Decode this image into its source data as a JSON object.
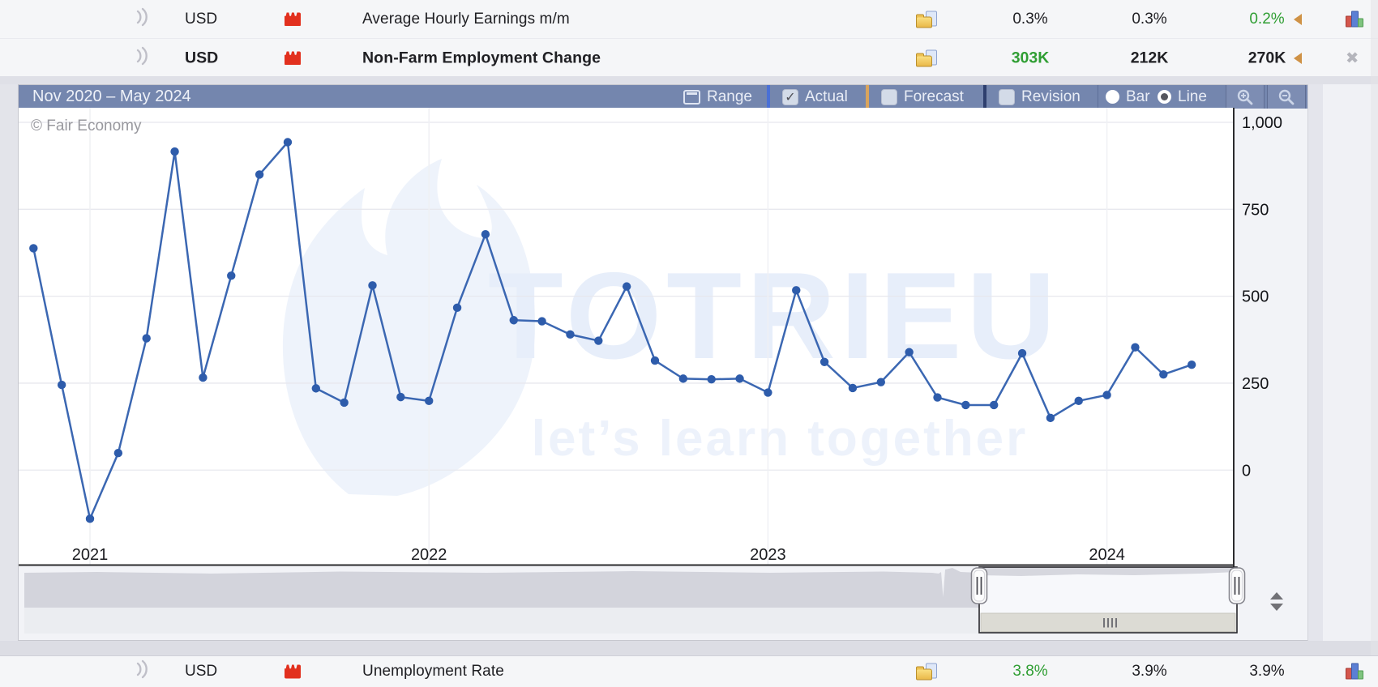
{
  "events": {
    "rows": [
      {
        "currency": "USD",
        "title": "Average Hourly Earnings m/m",
        "actual": "0.3%",
        "forecast": "0.3%",
        "previous": "0.2%"
      },
      {
        "currency": "USD",
        "title": "Non-Farm Employment Change",
        "actual": "303K",
        "forecast": "212K",
        "previous": "270K"
      },
      {
        "currency": "USD",
        "title": "Unemployment Rate",
        "actual": "3.8%",
        "forecast": "3.9%",
        "previous": "3.9%"
      }
    ]
  },
  "icons": {
    "close_glyph": "✖"
  },
  "colors": {
    "accent_green": "#2f9e33",
    "revision_arrow": "#cf9246",
    "impact_red": "#e2301e",
    "series_blue": "#3b67b2",
    "header_blue": "#7486ae"
  },
  "chart": {
    "range_title": "Nov 2020 – May 2024",
    "controls": {
      "range_label": "Range",
      "actual_label": "Actual",
      "forecast_label": "Forecast",
      "revision_label": "Revision",
      "bar_label": "Bar",
      "line_label": "Line",
      "actual_checked": true,
      "forecast_checked": false,
      "revision_checked": false,
      "mode_selected": "Line"
    },
    "watermark_copyright": "© Fair Economy",
    "watermark_title": "TOTRIEU",
    "watermark_subtitle": "let’s learn together"
  },
  "chart_data": {
    "type": "line",
    "title": "Non-Farm Employment Change",
    "range_label": "Nov 2020 – May 2024",
    "unit": "K",
    "x": [
      "Nov 2020",
      "Dec 2020",
      "Jan 2021",
      "Feb 2021",
      "Mar 2021",
      "Apr 2021",
      "May 2021",
      "Jun 2021",
      "Jul 2021",
      "Aug 2021",
      "Sep 2021",
      "Oct 2021",
      "Nov 2021",
      "Dec 2021",
      "Jan 2022",
      "Feb 2022",
      "Mar 2022",
      "Apr 2022",
      "May 2022",
      "Jun 2022",
      "Jul 2022",
      "Aug 2022",
      "Sep 2022",
      "Oct 2022",
      "Nov 2022",
      "Dec 2022",
      "Jan 2023",
      "Feb 2023",
      "Mar 2023",
      "Apr 2023",
      "May 2023",
      "Jun 2023",
      "Jul 2023",
      "Aug 2023",
      "Sep 2023",
      "Oct 2023",
      "Nov 2023",
      "Dec 2023",
      "Jan 2024",
      "Feb 2024",
      "Mar 2024",
      "Apr 2024"
    ],
    "series": [
      {
        "name": "Actual",
        "color": "#3b67b2",
        "values": [
          638,
          245,
          -140,
          49,
          379,
          916,
          266,
          559,
          850,
          943,
          235,
          194,
          531,
          210,
          199,
          467,
          678,
          431,
          428,
          390,
          372,
          528,
          315,
          263,
          261,
          263,
          223,
          517,
          311,
          236,
          253,
          339,
          209,
          187,
          187,
          336,
          150,
          199,
          216,
          353,
          275,
          303
        ]
      }
    ],
    "y_ticks": [
      1000,
      750,
      500,
      250,
      0
    ],
    "y_tick_labels": [
      "1,000",
      "750",
      "500",
      "250",
      "0"
    ],
    "x_tick_labels": [
      "2021",
      "2022",
      "2023",
      "2024"
    ],
    "x_tick_positions": [
      2,
      14,
      26,
      38
    ],
    "ylim": [
      -272,
      1042
    ],
    "grid": true,
    "legend": "none"
  }
}
